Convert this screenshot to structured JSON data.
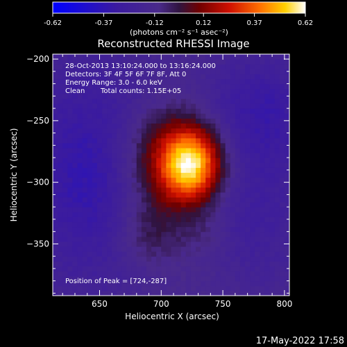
{
  "chart_data": {
    "type": "heatmap",
    "title": "Reconstructed RHESSI Image",
    "xlabel": "Heliocentric X (arcsec)",
    "ylabel": "Heliocentric Y (arcsec)",
    "xlim": [
      612,
      804
    ],
    "ylim": [
      -392,
      -196
    ],
    "xticks": [
      650,
      700,
      750,
      800
    ],
    "yticks": [
      -200,
      -250,
      -300,
      -350
    ],
    "colorbar": {
      "range": [
        -0.62,
        0.62
      ],
      "ticks": [
        "-0.62",
        "-0.37",
        "-0.12",
        "0.12",
        "0.37",
        "0.62"
      ],
      "unit_label": "(photons cm⁻² s⁻¹ asec⁻²)"
    },
    "annotations": {
      "time": "28-Oct-2013 13:10:24.000 to 13:16:24.000",
      "detectors": "Detectors: 3F 4F 5F 6F 7F 8F, Att 0",
      "energy": "Energy Range: 3.0 - 6.0 keV",
      "method": "Clean",
      "counts": "Total counts: 1.15E+05",
      "peak": "Position of Peak = [724,-287]"
    },
    "peak": {
      "x": 724,
      "y": -287,
      "value": 0.62
    },
    "sources": [
      {
        "x": 724,
        "y": -287,
        "sx": 17,
        "sy": 20,
        "amp": 0.62
      },
      {
        "x": 708,
        "y": -268,
        "sx": 30,
        "sy": 24,
        "amp": 0.22
      },
      {
        "x": 694,
        "y": -312,
        "sx": 22,
        "sy": 32,
        "amp": 0.18
      },
      {
        "x": 688,
        "y": -345,
        "sx": 18,
        "sy": 14,
        "amp": 0.08
      },
      {
        "x": 735,
        "y": -340,
        "sx": 12,
        "sy": 12,
        "amp": 0.06
      },
      {
        "x": 645,
        "y": -290,
        "sx": 45,
        "sy": 70,
        "amp": -0.26
      },
      {
        "x": 780,
        "y": -240,
        "sx": 35,
        "sy": 35,
        "amp": -0.2
      },
      {
        "x": 780,
        "y": -330,
        "sx": 30,
        "sy": 50,
        "amp": -0.14
      }
    ]
  },
  "footer": {
    "timestamp": "17-May-2022 17:58"
  }
}
